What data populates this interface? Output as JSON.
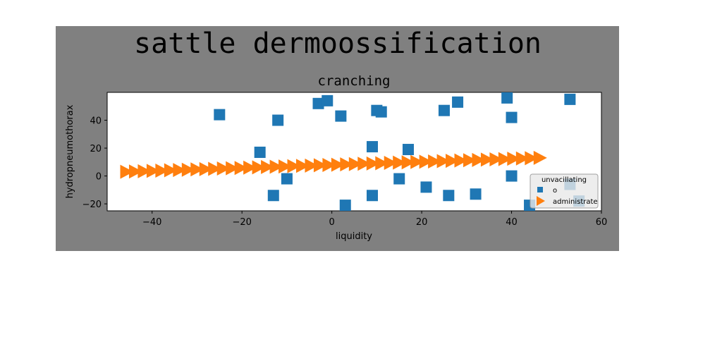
{
  "figure": {
    "suptitle": "sattle dermoossification",
    "background_color": "#808080",
    "page_color": "#ffffff",
    "plot_bg_color": "#ffffff"
  },
  "chart_data": {
    "type": "scatter",
    "title": "cranching",
    "xlabel": "liquidity",
    "ylabel": "hydropneumothorax",
    "xlim": [
      -50,
      60
    ],
    "ylim": [
      -25,
      60
    ],
    "xticks": [
      -40,
      -20,
      0,
      20,
      40,
      60
    ],
    "yticks": [
      -20,
      0,
      20,
      40
    ],
    "grid": false,
    "legend": {
      "title": "unvacillating",
      "placement": "lower-right"
    },
    "series": [
      {
        "name": "o",
        "marker": "square",
        "color": "#1f77b4",
        "x": [
          -25,
          -12,
          -16,
          -13,
          -10,
          -3,
          -1,
          2,
          3,
          9,
          9,
          10,
          11,
          15,
          17,
          21,
          25,
          26,
          28,
          32,
          39,
          40,
          40,
          44,
          53,
          53,
          55
        ],
        "y": [
          44,
          40,
          17,
          -14,
          -2,
          52,
          54,
          43,
          -21,
          21,
          -14,
          47,
          46,
          -2,
          19,
          -8,
          47,
          -14,
          53,
          -13,
          56,
          42,
          0,
          -21,
          55,
          -6,
          -18
        ]
      },
      {
        "name": "administrate",
        "marker": "triangle-right",
        "color": "#ff7f0e",
        "x_start": -46,
        "x_end": 46,
        "count": 48,
        "y_start": 3,
        "y_end": 13
      }
    ]
  }
}
